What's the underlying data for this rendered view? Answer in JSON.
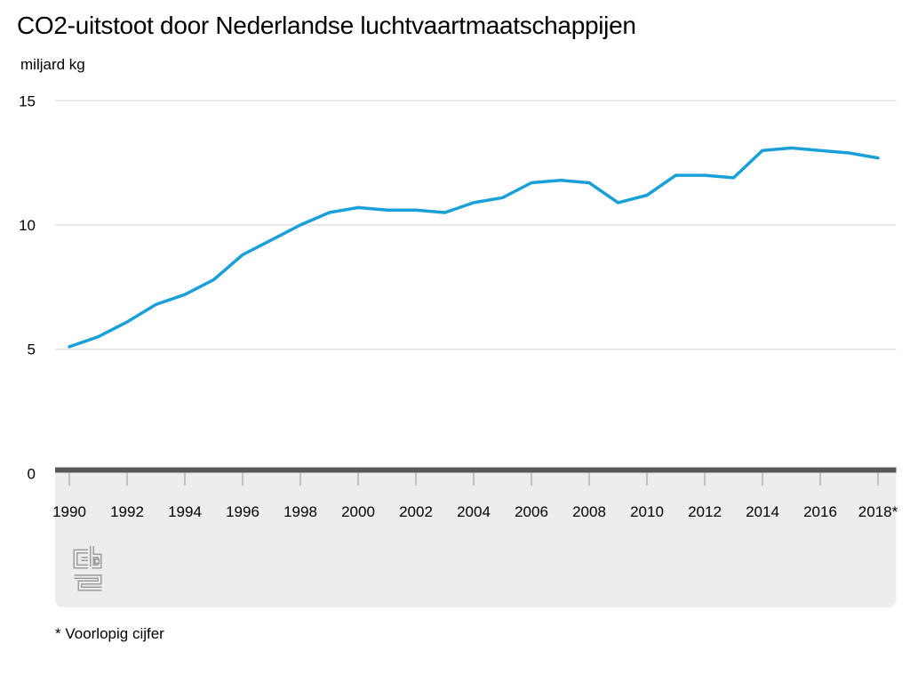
{
  "page": {
    "title": "CO2-uitstoot door Nederlandse luchtvaartmaatschappijen",
    "unit_label": "miljard kg",
    "footnote": "* Voorlopig cijfer",
    "logo_name": "cbs-logo"
  },
  "colors": {
    "line": "#1aa0d8",
    "axis": "#58585a",
    "grid": "#e3e3e3",
    "band": "#ededed",
    "tick": "#b3b3b3",
    "logo": "#9d9d9c",
    "text": "#000000"
  },
  "chart_data": {
    "type": "line",
    "title": "CO2-uitstoot door Nederlandse luchtvaartmaatschappijen",
    "xlabel": "",
    "ylabel": "miljard kg",
    "x": [
      1990,
      1991,
      1992,
      1993,
      1994,
      1995,
      1996,
      1997,
      1998,
      1999,
      2000,
      2001,
      2002,
      2003,
      2004,
      2005,
      2006,
      2007,
      2008,
      2009,
      2010,
      2011,
      2012,
      2013,
      2014,
      2015,
      2016,
      2017,
      2018
    ],
    "values": [
      5.1,
      5.5,
      6.1,
      6.8,
      7.2,
      7.8,
      8.8,
      9.4,
      10.0,
      10.5,
      10.7,
      10.6,
      10.6,
      10.5,
      10.9,
      11.1,
      11.7,
      11.8,
      11.7,
      10.9,
      11.2,
      12.0,
      12.0,
      11.9,
      13.0,
      13.1,
      13.0,
      12.9,
      12.7
    ],
    "x_tick_labels": [
      "1990",
      "1992",
      "1994",
      "1996",
      "1998",
      "2000",
      "2002",
      "2004",
      "2006",
      "2008",
      "2010",
      "2012",
      "2014",
      "2016",
      "2018*"
    ],
    "y_ticks": [
      0,
      5,
      10,
      15
    ],
    "y_tick_labels": [
      "0",
      "5",
      "10",
      "15"
    ],
    "ylim": [
      0,
      15
    ],
    "grid": "horizontal",
    "legend": "none",
    "footnote": "* Voorlopig cijfer"
  }
}
